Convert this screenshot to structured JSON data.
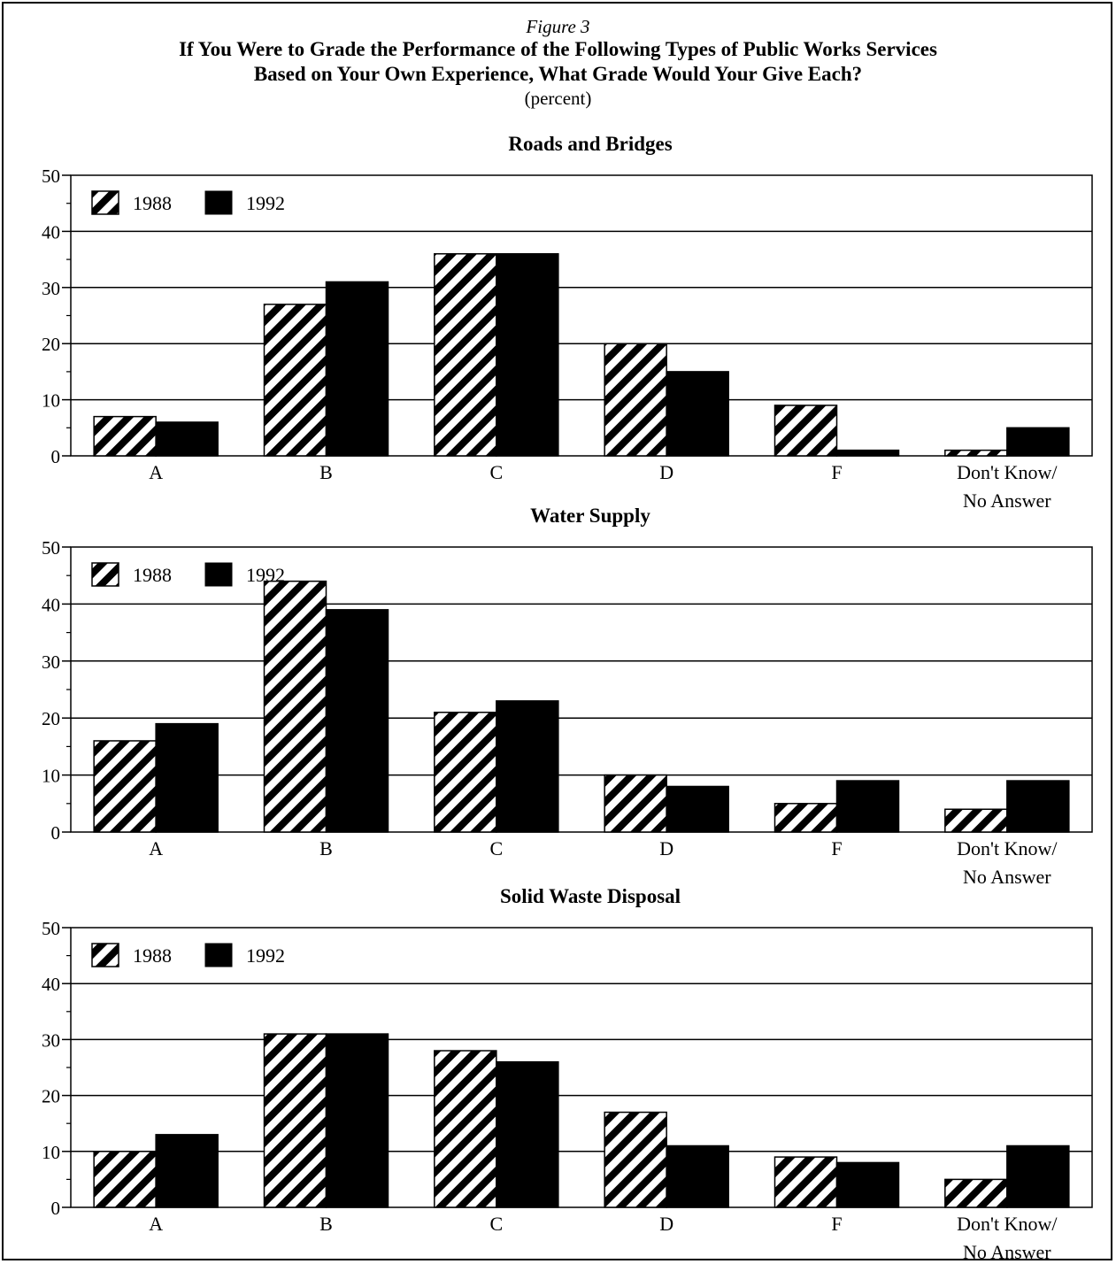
{
  "figure_label": "Figure 3",
  "title_lines": [
    "If You Were to Grade the Performance of the Following Types of Public Works Services",
    "Based on Your Own Experience, What Grade Would Your Give Each?"
  ],
  "unit_label": "(percent)",
  "colors": {
    "series_1988": "hatched",
    "series_1992": "#000000",
    "background": "#ffffff"
  },
  "chart_data": [
    {
      "type": "bar",
      "title": "Roads and Bridges",
      "categories": [
        "A",
        "B",
        "C",
        "D",
        "F",
        "Don't Know/\nNo Answer"
      ],
      "series": [
        {
          "name": "1988",
          "values": [
            7,
            27,
            36,
            20,
            9,
            1
          ]
        },
        {
          "name": "1992",
          "values": [
            6,
            31,
            36,
            15,
            1,
            5
          ]
        }
      ],
      "ylim": [
        0,
        50
      ],
      "yticks": [
        0,
        10,
        20,
        30,
        40,
        50
      ],
      "grid": true,
      "legend": "top-left"
    },
    {
      "type": "bar",
      "title": "Water Supply",
      "categories": [
        "A",
        "B",
        "C",
        "D",
        "F",
        "Don't Know/\nNo Answer"
      ],
      "series": [
        {
          "name": "1988",
          "values": [
            16,
            44,
            21,
            10,
            5,
            4
          ]
        },
        {
          "name": "1992",
          "values": [
            19,
            39,
            23,
            8,
            9,
            9
          ]
        }
      ],
      "ylim": [
        0,
        50
      ],
      "yticks": [
        0,
        10,
        20,
        30,
        40,
        50
      ],
      "grid": true,
      "legend": "top-left"
    },
    {
      "type": "bar",
      "title": "Solid Waste Disposal",
      "categories": [
        "A",
        "B",
        "C",
        "D",
        "F",
        "Don't Know/\nNo Answer"
      ],
      "series": [
        {
          "name": "1988",
          "values": [
            10,
            31,
            28,
            17,
            9,
            5
          ]
        },
        {
          "name": "1992",
          "values": [
            13,
            31,
            26,
            11,
            8,
            11
          ]
        }
      ],
      "ylim": [
        0,
        50
      ],
      "yticks": [
        0,
        10,
        20,
        30,
        40,
        50
      ],
      "grid": true,
      "legend": "top-left"
    }
  ]
}
